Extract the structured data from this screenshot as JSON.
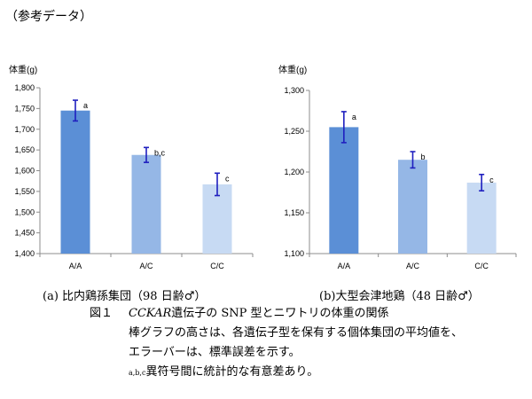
{
  "header": "（参考データ）",
  "chart_data": [
    {
      "type": "bar",
      "ylabel": "体重(g)",
      "categories": [
        "A/A",
        "A/C",
        "C/C"
      ],
      "values": [
        1745,
        1638,
        1567
      ],
      "error": [
        25,
        18,
        27
      ],
      "significance": [
        "a",
        "b,c",
        "c"
      ],
      "ylim": [
        1400,
        1800
      ],
      "yticks": [
        "1,400",
        "1,450",
        "1,500",
        "1,550",
        "1,600",
        "1,650",
        "1,700",
        "1,750",
        "1,800"
      ],
      "colors": [
        "#5b8fd6",
        "#95b7e6",
        "#c7daf3"
      ],
      "grid": false,
      "caption": "(a) 比内鶏孫集団（98 日齢♂）"
    },
    {
      "type": "bar",
      "ylabel": "体重(g)",
      "categories": [
        "A/A",
        "A/C",
        "C/C"
      ],
      "values": [
        1255,
        1215,
        1187
      ],
      "error": [
        19,
        10,
        10
      ],
      "significance": [
        "a",
        "b",
        "c"
      ],
      "ylim": [
        1100,
        1300
      ],
      "yticks": [
        "1,100",
        "1,150",
        "1,200",
        "1,250",
        "1,300"
      ],
      "colors": [
        "#5b8fd6",
        "#95b7e6",
        "#c7daf3"
      ],
      "grid": false,
      "caption": "(b)大型会津地鶏（48 日齢♂）"
    }
  ],
  "figure": {
    "label": "図１",
    "gene": "CCKAR",
    "title_rest": "遺伝子の SNP 型とニワトリの体重の関係",
    "line2": "棒グラフの高さは、各遺伝子型を保有する個体集団の平均値を、",
    "line3": "エラーバーは、標準誤差を示す。",
    "line4_sup": "a,b,c",
    "line4": "異符号間に統計的な有意差あり。"
  }
}
